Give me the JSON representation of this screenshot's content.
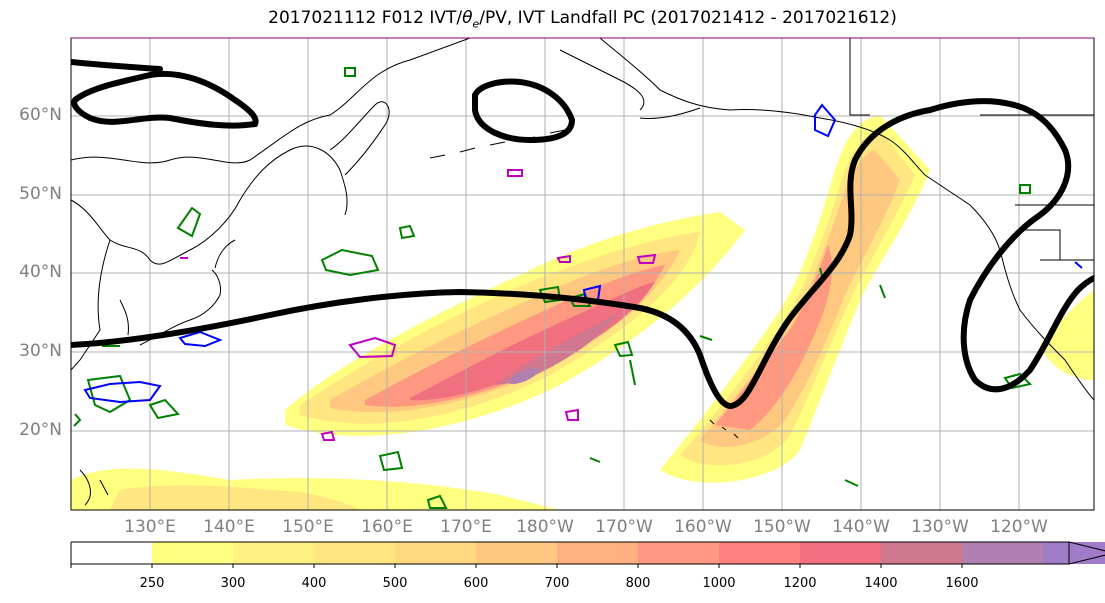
{
  "title": {
    "prefix": "2017021112 F012 IVT/",
    "theta": "θ",
    "theta_sub": "e",
    "suffix": "/PV, IVT Landfall PC (2017021412 - 2017021612)"
  },
  "lat_labels": [
    "60°N",
    "50°N",
    "40°N",
    "30°N",
    "20°N"
  ],
  "lon_labels": [
    "130°E",
    "140°E",
    "150°E",
    "160°E",
    "170°E",
    "180°W",
    "170°W",
    "160°W",
    "150°W",
    "140°W",
    "130°W",
    "120°W"
  ],
  "colorbar": {
    "levels": [
      "250",
      "300",
      "400",
      "500",
      "600",
      "700",
      "800",
      "1000",
      "1200",
      "1400",
      "1600"
    ],
    "colors": [
      "#ffff80",
      "#fff280",
      "#ffe680",
      "#ffd980",
      "#ffc880",
      "#ffb080",
      "#ff9880",
      "#ff8080",
      "#f07080",
      "#d07890",
      "#b080b0",
      "#a07cc8"
    ]
  },
  "contour_colors": {
    "ridge": "#000000",
    "green": "#008000",
    "blue": "#0000ff",
    "magenta": "#c000c0"
  }
}
